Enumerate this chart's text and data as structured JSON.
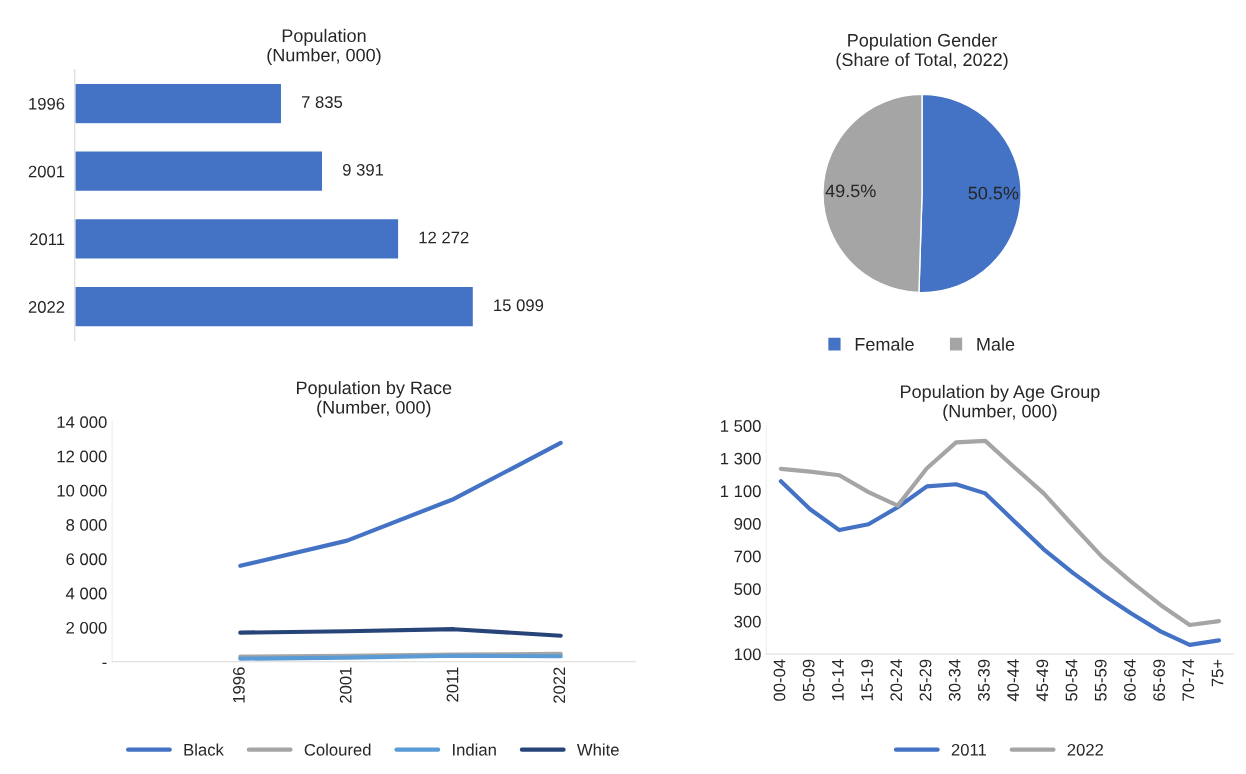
{
  "chart_data": [
    {
      "type": "bar",
      "title": "Population\n(Number, 000)",
      "orientation": "horizontal",
      "categories": [
        "1996",
        "2001",
        "2011",
        "2022"
      ],
      "values": [
        7835,
        9391,
        12272,
        15099
      ],
      "value_labels": [
        "7 835",
        "9 391",
        "12 272",
        "15 099"
      ],
      "color": "#4472c4",
      "tick_labels": "y",
      "grid": false
    },
    {
      "type": "pie",
      "title": "Population Gender\n(Share of Total, 2022)",
      "categories": [
        "Female",
        "Male"
      ],
      "values": [
        50.5,
        49.5
      ],
      "colors": [
        "#4472c4",
        "#a5a5a5"
      ],
      "value_labels": [
        "50.5%",
        "49.5%"
      ],
      "legend": "bottom"
    },
    {
      "type": "line",
      "title": "Population by Race\n(Number, 000)",
      "categories": [
        "1996",
        "2001",
        "2011",
        "2022"
      ],
      "ylim": [
        0,
        14000
      ],
      "yticks": [
        {
          "value": 0,
          "label": "-"
        },
        {
          "value": 2000,
          "label": "2 000"
        },
        {
          "value": 4000,
          "label": "4 000"
        },
        {
          "value": 6000,
          "label": "6 000"
        },
        {
          "value": 8000,
          "label": "8 000"
        },
        {
          "value": 10000,
          "label": "10 000"
        },
        {
          "value": 12000,
          "label": "12 000"
        },
        {
          "value": 14000,
          "label": "14 000"
        }
      ],
      "grid": false,
      "legend": "bottom",
      "series": [
        {
          "name": "Black",
          "color": "#4472c4",
          "values": [
            5600,
            7070,
            9500,
            12770
          ]
        },
        {
          "name": "Coloured",
          "color": "#a5a5a5",
          "values": [
            300,
            340,
            420,
            460
          ]
        },
        {
          "name": "Indian",
          "color": "#5b9bd5",
          "values": [
            180,
            240,
            350,
            320
          ]
        },
        {
          "name": "White",
          "color": "#264478",
          "values": [
            1700,
            1780,
            1900,
            1520
          ]
        }
      ]
    },
    {
      "type": "line",
      "title": "Population by Age Group\n(Number, 000)",
      "categories": [
        "00-04",
        "05-09",
        "10-14",
        "15-19",
        "20-24",
        "25-29",
        "30-34",
        "35-39",
        "40-44",
        "45-49",
        "50-54",
        "55-59",
        "60-64",
        "65-69",
        "70-74",
        "75+"
      ],
      "ylim": [
        100,
        1500
      ],
      "yticks": [
        {
          "value": 100,
          "label": "100"
        },
        {
          "value": 300,
          "label": "300"
        },
        {
          "value": 500,
          "label": "500"
        },
        {
          "value": 700,
          "label": "700"
        },
        {
          "value": 900,
          "label": "900"
        },
        {
          "value": 1100,
          "label": "1 100"
        },
        {
          "value": 1300,
          "label": "1 300"
        },
        {
          "value": 1500,
          "label": "1 500"
        }
      ],
      "grid": false,
      "legend": "bottom",
      "series": [
        {
          "name": "2011",
          "color": "#4472c4",
          "values": [
            1160,
            988,
            860,
            896,
            1000,
            1128,
            1141,
            1085,
            913,
            742,
            598,
            467,
            349,
            239,
            156,
            184
          ]
        },
        {
          "name": "2022",
          "color": "#a5a5a5",
          "values": [
            1235,
            1218,
            1196,
            1093,
            1010,
            1239,
            1398,
            1407,
            1244,
            1085,
            888,
            696,
            542,
            401,
            278,
            302
          ]
        }
      ]
    }
  ]
}
